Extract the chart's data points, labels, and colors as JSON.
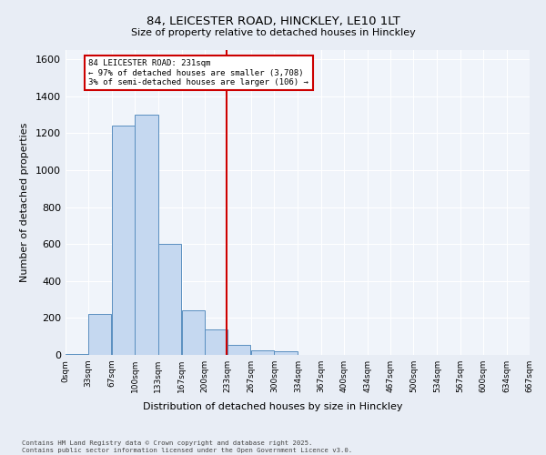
{
  "title1": "84, LEICESTER ROAD, HINCKLEY, LE10 1LT",
  "title2": "Size of property relative to detached houses in Hinckley",
  "xlabel": "Distribution of detached houses by size in Hinckley",
  "ylabel": "Number of detached properties",
  "bar_values": [
    5,
    220,
    1240,
    1300,
    600,
    240,
    140,
    55,
    25,
    20,
    0,
    0,
    0,
    0,
    0,
    0,
    0,
    0,
    0,
    0
  ],
  "bin_edges": [
    0,
    33,
    67,
    100,
    133,
    167,
    200,
    233,
    267,
    300,
    334,
    367,
    400,
    434,
    467,
    500,
    534,
    567,
    600,
    634,
    667
  ],
  "tick_labels": [
    "0sqm",
    "33sqm",
    "67sqm",
    "100sqm",
    "133sqm",
    "167sqm",
    "200sqm",
    "233sqm",
    "267sqm",
    "300sqm",
    "334sqm",
    "367sqm",
    "400sqm",
    "434sqm",
    "467sqm",
    "500sqm",
    "534sqm",
    "567sqm",
    "600sqm",
    "634sqm",
    "667sqm"
  ],
  "bar_color": "#c5d8f0",
  "bar_edge_color": "#5a8fc0",
  "vline_x": 231,
  "vline_color": "#cc0000",
  "annotation_title": "84 LEICESTER ROAD: 231sqm",
  "annotation_line1": "← 97% of detached houses are smaller (3,708)",
  "annotation_line2": "3% of semi-detached houses are larger (106) →",
  "annotation_box_color": "#cc0000",
  "ylim": [
    0,
    1650
  ],
  "yticks": [
    0,
    200,
    400,
    600,
    800,
    1000,
    1200,
    1400,
    1600
  ],
  "footnote1": "Contains HM Land Registry data © Crown copyright and database right 2025.",
  "footnote2": "Contains public sector information licensed under the Open Government Licence v3.0.",
  "bg_color": "#e8edf5",
  "plot_bg_color": "#f0f4fa"
}
